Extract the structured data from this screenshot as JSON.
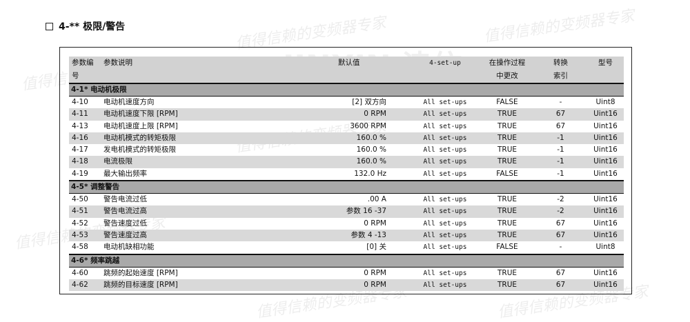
{
  "title": "4-** 极限/警告",
  "watermark": "值得信赖的变频器专家",
  "logo": "JINXIN 津信",
  "headers": {
    "no": [
      "参数编",
      "号"
    ],
    "desc": "参数说明",
    "default": "默认值",
    "setup": "4-set-up",
    "change": [
      "在操作过程",
      "中更改"
    ],
    "conv": [
      "转换",
      "索引"
    ],
    "type": "型号"
  },
  "sections": [
    {
      "label": "4-1* 电动机极限",
      "rows": [
        {
          "no": "4-10",
          "desc": "电动机速度方向",
          "default": "[2] 双方向",
          "setup": "All set-ups",
          "change": "FALSE",
          "conv": "-",
          "type": "Uint8"
        },
        {
          "no": "4-11",
          "desc": "电动机速度下限 [RPM]",
          "default": "0 RPM",
          "setup": "All set-ups",
          "change": "TRUE",
          "conv": "67",
          "type": "Uint16"
        },
        {
          "no": "4-13",
          "desc": "电动机速度上限 [RPM]",
          "default": "3600 RPM",
          "setup": "All set-ups",
          "change": "TRUE",
          "conv": "67",
          "type": "Uint16"
        },
        {
          "no": "4-16",
          "desc": "电动机模式的转矩极限",
          "default": "160.0 %",
          "setup": "All set-ups",
          "change": "TRUE",
          "conv": "-1",
          "type": "Uint16"
        },
        {
          "no": "4-17",
          "desc": "发电机模式的转矩极限",
          "default": "160.0 %",
          "setup": "All set-ups",
          "change": "TRUE",
          "conv": "-1",
          "type": "Uint16"
        },
        {
          "no": "4-18",
          "desc": "电流极限",
          "default": "160.0 %",
          "setup": "All set-ups",
          "change": "TRUE",
          "conv": "-1",
          "type": "Uint16"
        },
        {
          "no": "4-19",
          "desc": "最大输出频率",
          "default": "132.0 Hz",
          "setup": "All set-ups",
          "change": "FALSE",
          "conv": "-1",
          "type": "Uint16"
        }
      ]
    },
    {
      "label": "4-5* 调整警告",
      "rows": [
        {
          "no": "4-50",
          "desc": "警告电流过低",
          "default": ".00 A",
          "setup": "All set-ups",
          "change": "TRUE",
          "conv": "-2",
          "type": "Uint16"
        },
        {
          "no": "4-51",
          "desc": "警告电流过高",
          "default": "参数 16 -37",
          "setup": "All set-ups",
          "change": "TRUE",
          "conv": "-2",
          "type": "Uint16"
        },
        {
          "no": "4-52",
          "desc": "警告速度过低",
          "default": "0 RPM",
          "setup": "All set-ups",
          "change": "TRUE",
          "conv": "67",
          "type": "Uint16"
        },
        {
          "no": "4-53",
          "desc": "警告速度过高",
          "default": "参数 4 -13",
          "setup": "All set-ups",
          "change": "TRUE",
          "conv": "67",
          "type": "Uint16"
        },
        {
          "no": "4-58",
          "desc": "电动机缺相功能",
          "default": "[0] 关",
          "setup": "All set-ups",
          "change": "FALSE",
          "conv": "-",
          "type": "Uint8"
        }
      ]
    },
    {
      "label": "4-6* 频率跳越",
      "rows": [
        {
          "no": "4-60",
          "desc": "跳频的起始速度 [RPM]",
          "default": "0 RPM",
          "setup": "All set-ups",
          "change": "TRUE",
          "conv": "67",
          "type": "Uint16"
        },
        {
          "no": "4-62",
          "desc": "跳频的目标速度 [RPM]",
          "default": "0 RPM",
          "setup": "All set-ups",
          "change": "TRUE",
          "conv": "67",
          "type": "Uint16"
        }
      ]
    }
  ]
}
